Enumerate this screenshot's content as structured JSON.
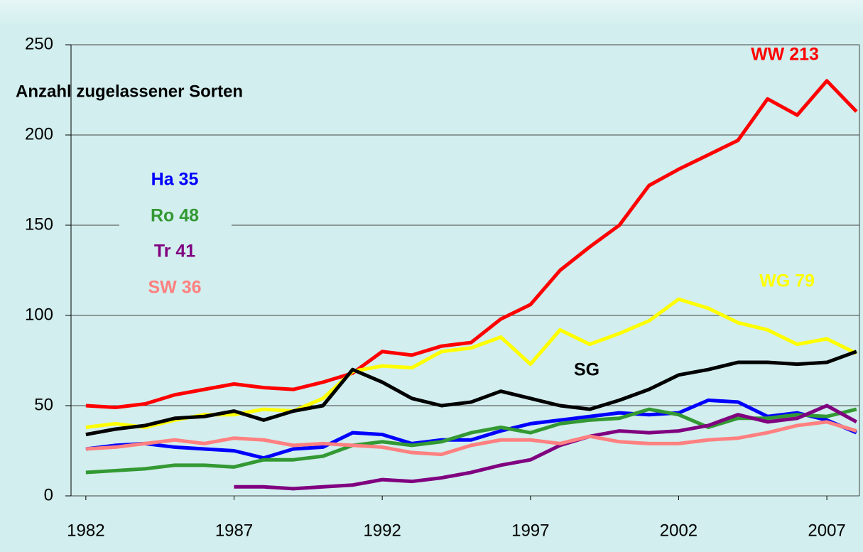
{
  "chart_data": {
    "type": "line",
    "title": "Anzahl zugelassener Sorten",
    "x": [
      1982,
      1983,
      1984,
      1985,
      1986,
      1987,
      1988,
      1989,
      1990,
      1991,
      1992,
      1993,
      1994,
      1995,
      1996,
      1997,
      1998,
      1999,
      2000,
      2001,
      2002,
      2003,
      2004,
      2005,
      2006,
      2007,
      2008
    ],
    "xlim": [
      1981.5,
      2008.1
    ],
    "xticks": [
      1982,
      1987,
      1992,
      1997,
      2002,
      2007
    ],
    "ylim": [
      0,
      250
    ],
    "yticks": [
      0,
      50,
      100,
      150,
      200,
      250
    ],
    "grid": true,
    "series": [
      {
        "name": "WW 213",
        "color": "#ff0000",
        "values": [
          50,
          49,
          51,
          56,
          59,
          62,
          60,
          59,
          63,
          68,
          80,
          78,
          83,
          85,
          98,
          106,
          125,
          138,
          150,
          172,
          181,
          189,
          197,
          220,
          211,
          230,
          213
        ]
      },
      {
        "name": "WG 79",
        "color": "#ffff00",
        "values": [
          38,
          40,
          38,
          42,
          45,
          45,
          48,
          47,
          54,
          69,
          72,
          71,
          80,
          82,
          88,
          73,
          92,
          84,
          90,
          97,
          109,
          104,
          96,
          92,
          84,
          87,
          79
        ]
      },
      {
        "name": "SG",
        "color": "#000000",
        "values": [
          34,
          37,
          39,
          43,
          44,
          47,
          42,
          47,
          50,
          70,
          63,
          54,
          50,
          52,
          58,
          54,
          50,
          48,
          53,
          59,
          67,
          70,
          74,
          74,
          73,
          74,
          80
        ]
      },
      {
        "name": "Ha 35",
        "color": "#0000ff",
        "values": [
          26,
          28,
          29,
          27,
          26,
          25,
          21,
          26,
          27,
          35,
          34,
          29,
          31,
          31,
          36,
          40,
          42,
          44,
          46,
          45,
          46,
          53,
          52,
          44,
          46,
          42,
          35
        ]
      },
      {
        "name": "Ro 48",
        "color": "#339933",
        "values": [
          13,
          14,
          15,
          17,
          17,
          16,
          20,
          20,
          22,
          28,
          30,
          28,
          30,
          35,
          38,
          35,
          40,
          42,
          43,
          48,
          45,
          38,
          43,
          43,
          45,
          44,
          48
        ]
      },
      {
        "name": "Tr 41",
        "color": "#800080",
        "values": [
          null,
          null,
          null,
          null,
          null,
          5,
          5,
          4,
          5,
          6,
          9,
          8,
          10,
          13,
          17,
          20,
          28,
          33,
          36,
          35,
          36,
          39,
          45,
          41,
          43,
          50,
          41
        ]
      },
      {
        "name": "SW 36",
        "color": "#ff8080",
        "values": [
          26,
          27,
          29,
          31,
          29,
          32,
          31,
          28,
          29,
          28,
          27,
          24,
          23,
          28,
          31,
          31,
          29,
          33,
          30,
          29,
          29,
          31,
          32,
          35,
          39,
          41,
          36
        ]
      }
    ]
  }
}
